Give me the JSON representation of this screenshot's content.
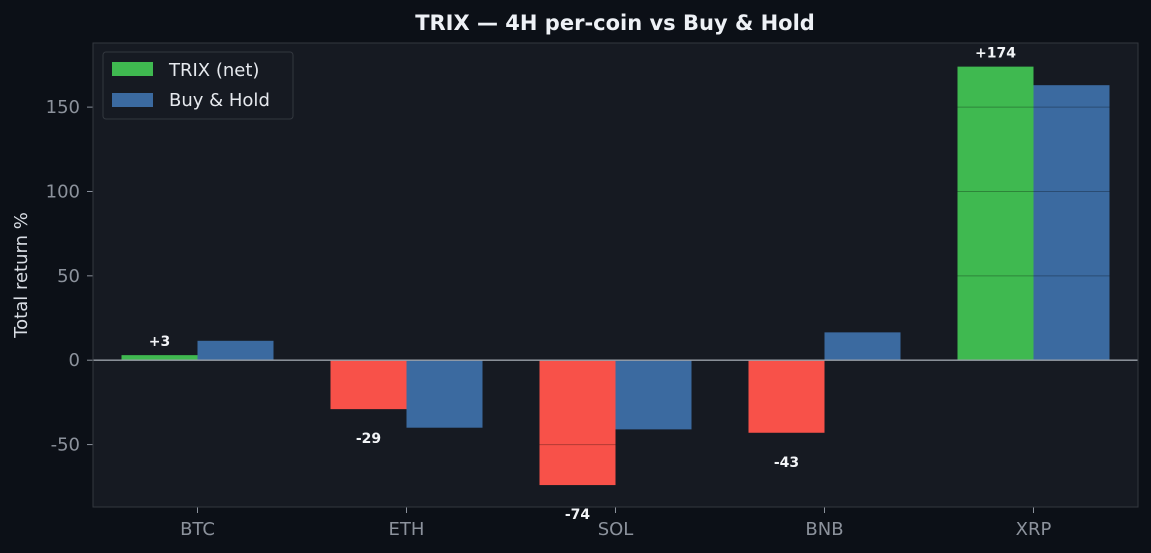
{
  "chart_data": {
    "type": "bar",
    "title": "TRIX — 4H per-coin vs Buy & Hold",
    "xlabel": "",
    "ylabel": "Total return %",
    "categories": [
      "BTC",
      "ETH",
      "SOL",
      "BNB",
      "XRP"
    ],
    "series": [
      {
        "name": "TRIX (net)",
        "values": [
          3,
          -29,
          -74,
          -43,
          174
        ]
      },
      {
        "name": "Buy & Hold",
        "values": [
          11.5,
          -40,
          -41,
          16.5,
          163
        ]
      }
    ],
    "data_labels": [
      "+3",
      "-29",
      "-74",
      "-43",
      "+174"
    ],
    "ylim": [
      -87,
      188
    ],
    "yticks": [
      -50,
      0,
      50,
      100,
      150
    ],
    "grid": false,
    "legend_position": "top-left",
    "colors": {
      "positive": "#3fb950",
      "negative": "#f85149",
      "buy_hold": "#3b6aa0",
      "plot_bg": "#161a22",
      "page_bg": "#0c1017",
      "frame": "#33383f",
      "zero_line": "#9aa0a8"
    }
  }
}
